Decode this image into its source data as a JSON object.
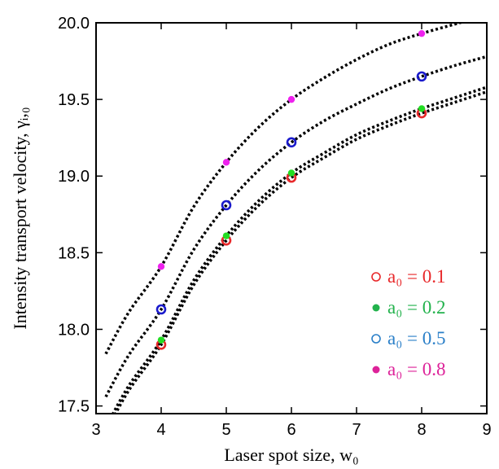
{
  "chart_data": {
    "type": "scatter",
    "xlabel": "Laser spot size, w₀",
    "ylabel": "Intensity transport velocity, γᵢ,₀",
    "xlim": [
      3,
      9
    ],
    "ylim": [
      17.45,
      20.0
    ],
    "xticks": [
      "3",
      "4",
      "5",
      "6",
      "7",
      "8",
      "9"
    ],
    "yticks": [
      "17.5",
      "18.0",
      "18.5",
      "19.0",
      "19.5",
      "20.0"
    ],
    "grid": false,
    "legend_position": "bottom-right",
    "series": [
      {
        "name": "a₀ = 0.1",
        "marker": "open-circle",
        "color": "#e8282a",
        "legend_color": "#e8282a",
        "x": [
          4,
          5,
          6,
          8
        ],
        "y": [
          17.9,
          18.58,
          18.99,
          19.41
        ]
      },
      {
        "name": "a₀ = 0.2",
        "marker": "filled-circle",
        "color": "#22dd22",
        "legend_color": "#22b24c",
        "x": [
          4,
          5,
          6,
          8
        ],
        "y": [
          17.93,
          18.61,
          19.02,
          19.44
        ]
      },
      {
        "name": "a₀ = 0.5",
        "marker": "open-circle",
        "color": "#1a1acc",
        "legend_color": "#2a7fc8",
        "x": [
          4,
          5,
          6,
          8
        ],
        "y": [
          18.13,
          18.81,
          19.22,
          19.65
        ]
      },
      {
        "name": "a₀ = 0.8",
        "marker": "filled-circle",
        "color": "#ee22ee",
        "legend_color": "#dd2299",
        "x": [
          4,
          5,
          6,
          8
        ],
        "y": [
          18.41,
          19.09,
          19.5,
          19.93
        ]
      }
    ],
    "fit_curves": [
      {
        "series": "a₀ = 0.1",
        "x": [
          3.15,
          3.5,
          4,
          4.5,
          5,
          5.5,
          6,
          6.5,
          7,
          7.5,
          8,
          8.5,
          9
        ],
        "y": [
          17.33,
          17.6,
          17.9,
          18.29,
          18.58,
          18.81,
          18.99,
          19.12,
          19.24,
          19.33,
          19.41,
          19.48,
          19.55
        ]
      },
      {
        "series": "a₀ = 0.2",
        "x": [
          3.15,
          3.5,
          4,
          4.5,
          5,
          5.5,
          6,
          6.5,
          7,
          7.5,
          8,
          8.5,
          9
        ],
        "y": [
          17.36,
          17.63,
          17.93,
          18.32,
          18.61,
          18.84,
          19.02,
          19.15,
          19.27,
          19.36,
          19.44,
          19.51,
          19.58
        ]
      },
      {
        "series": "a₀ = 0.5",
        "x": [
          3.15,
          3.5,
          4,
          4.5,
          5,
          5.5,
          6,
          6.5,
          7,
          7.5,
          8,
          8.5,
          9
        ],
        "y": [
          17.56,
          17.83,
          18.13,
          18.52,
          18.81,
          19.04,
          19.22,
          19.36,
          19.47,
          19.57,
          19.65,
          19.72,
          19.78
        ]
      },
      {
        "series": "a₀ = 0.8",
        "x": [
          3.15,
          3.5,
          4,
          4.5,
          5,
          5.5,
          6,
          6.5,
          7,
          7.5,
          8,
          8.5,
          8.75
        ],
        "y": [
          17.84,
          18.11,
          18.41,
          18.8,
          19.09,
          19.32,
          19.5,
          19.64,
          19.76,
          19.86,
          19.93,
          19.99,
          20.02
        ]
      }
    ]
  }
}
